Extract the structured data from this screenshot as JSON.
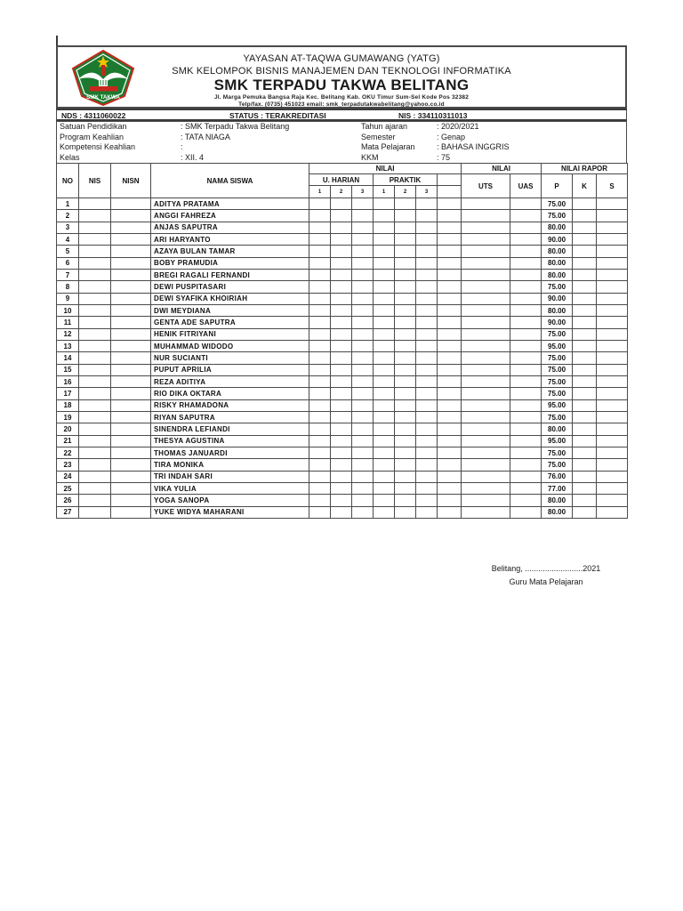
{
  "document": {
    "letterhead": {
      "foundation": "YAYASAN AT-TAQWA GUMAWANG (YATG)",
      "group": "SMK KELOMPOK BISNIS MANAJEMEN DAN TEKNOLOGI INFORMATIKA",
      "school_name": "SMK TERPADU TAKWA BELITANG",
      "address": "Jl. Marga Pemuka Bangsa Raja Kec. Belitang Kab. OKU Timur Sum-Sel Kode Pos 32382",
      "contact": "Telp/fax. (0735) 451023 email: smk_terpadutakwabelitang@yahoo.co.id",
      "logo": {
        "banner_text": "SMK TAKWA",
        "colors": {
          "green": "#1b7a2f",
          "red": "#c6281e",
          "yellow": "#f2c400",
          "white": "#ffffff"
        }
      }
    },
    "registry_bar": {
      "nds": "NDS : 4311060022",
      "status": "STATUS : TERAKREDITASI",
      "nis": "NIS : 334110311013"
    },
    "info": {
      "left": [
        {
          "label": "Satuan Pendidikan",
          "value": ": SMK Terpadu  Takwa Belitang"
        },
        {
          "label": "Program Keahlian",
          "value": ": TATA NIAGA"
        },
        {
          "label": "Kompetensi Keahlian",
          "value": ":"
        },
        {
          "label": "Kelas",
          "value": ": XII. 4"
        }
      ],
      "right": [
        {
          "label": "Tahun ajaran",
          "value": ": 2020/2021"
        },
        {
          "label": "Semester",
          "value": ": Genap"
        },
        {
          "label": "Mata Pelajaran",
          "value": ": BAHASA INGGRIS"
        },
        {
          "label": "KKM",
          "value": ": 75"
        }
      ]
    },
    "table": {
      "headers": {
        "no": "NO",
        "nis": "NIS",
        "nisn": "NISN",
        "nama": "NAMA SISWA",
        "nilai_group1": "NILAI",
        "u_harian": "U. HARIAN",
        "praktik": "PRAKTIK",
        "sub": [
          "1",
          "2",
          "3"
        ],
        "nilai_group2": "NILAI",
        "uts": "UTS",
        "uas": "UAS",
        "nilai_rapor": "NILAI RAPOR",
        "p": "P",
        "k": "K",
        "s": "S"
      },
      "row_cells": [
        "no",
        "nis",
        "nisn",
        "nama",
        "uh1",
        "uh2",
        "uh3",
        "pr1",
        "pr2",
        "pr3",
        "x",
        "uts",
        "uas",
        "p",
        "k",
        "s"
      ],
      "rows": [
        {
          "no": "1",
          "nama": "ADITYA PRATAMA",
          "p": "75.00"
        },
        {
          "no": "2",
          "nama": "ANGGI FAHREZA",
          "p": "75.00"
        },
        {
          "no": "3",
          "nama": "ANJAS SAPUTRA",
          "p": "80.00"
        },
        {
          "no": "4",
          "nama": "ARI HARYANTO",
          "p": "90.00"
        },
        {
          "no": "5",
          "nama": "AZAYA BULAN TAMAR",
          "p": "80.00"
        },
        {
          "no": "6",
          "nama": "BOBY PRAMUDIA",
          "p": "80.00"
        },
        {
          "no": "7",
          "nama": "BREGI RAGALI FERNANDI",
          "p": "80.00"
        },
        {
          "no": "8",
          "nama": "DEWI PUSPITASARI",
          "p": "75.00"
        },
        {
          "no": "9",
          "nama": "DEWI SYAFIKA KHOIRIAH",
          "p": "90.00"
        },
        {
          "no": "10",
          "nama": "DWI MEYDIANA",
          "p": "80.00"
        },
        {
          "no": "11",
          "nama": "GENTA ADE SAPUTRA",
          "p": "90.00"
        },
        {
          "no": "12",
          "nama": "HENIK FITRIYANI",
          "p": "75.00"
        },
        {
          "no": "13",
          "nama": "MUHAMMAD WIDODO",
          "p": "95.00"
        },
        {
          "no": "14",
          "nama": "NUR SUCIANTI",
          "p": "75.00"
        },
        {
          "no": "15",
          "nama": "PUPUT APRILIA",
          "p": "75.00"
        },
        {
          "no": "16",
          "nama": "REZA ADITIYA",
          "p": "75.00"
        },
        {
          "no": "17",
          "nama": "RIO DIKA OKTARA",
          "p": "75.00"
        },
        {
          "no": "18",
          "nama": "RISKY RHAMADONA",
          "p": "95.00"
        },
        {
          "no": "19",
          "nama": "RIYAN SAPUTRA",
          "p": "75.00"
        },
        {
          "no": "20",
          "nama": "SINENDRA LEFIANDI",
          "p": "80.00"
        },
        {
          "no": "21",
          "nama": "THESYA AGUSTINA",
          "p": "95.00"
        },
        {
          "no": "22",
          "nama": "THOMAS JANUARDI",
          "p": "75.00"
        },
        {
          "no": "23",
          "nama": "TIRA MONIKA",
          "p": "75.00"
        },
        {
          "no": "24",
          "nama": "TRI INDAH SARI",
          "p": "76.00"
        },
        {
          "no": "25",
          "nama": "VIKA YULIA",
          "p": "77.00"
        },
        {
          "no": "26",
          "nama": "YOGA SANOPA",
          "p": "80.00"
        },
        {
          "no": "27",
          "nama": "YUKE WIDYA MAHARANI",
          "p": "80.00"
        }
      ]
    },
    "footer": {
      "place_date": "Belitang, ..........................2021",
      "signer_title": "Guru Mata Pelajaran"
    }
  }
}
